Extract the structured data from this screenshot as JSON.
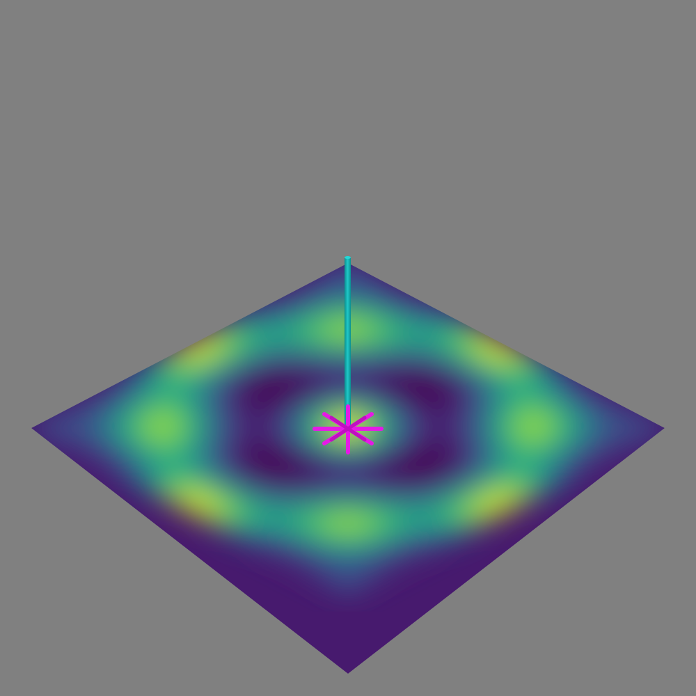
{
  "scene": {
    "background_color": "#808080",
    "colormap": "viridis",
    "colormap_stops": [
      "#440154",
      "#472c7a",
      "#3b518b",
      "#2c718e",
      "#21908d",
      "#27ad81",
      "#5cc863",
      "#aadc32",
      "#fde725"
    ],
    "surface": {
      "shape": "square-plane",
      "view": "isometric"
    },
    "marker": {
      "shape": "asterisk",
      "color": "#e619e6",
      "position": "center"
    },
    "pole": {
      "color": "#12b6b6",
      "direction": "vertical"
    }
  }
}
